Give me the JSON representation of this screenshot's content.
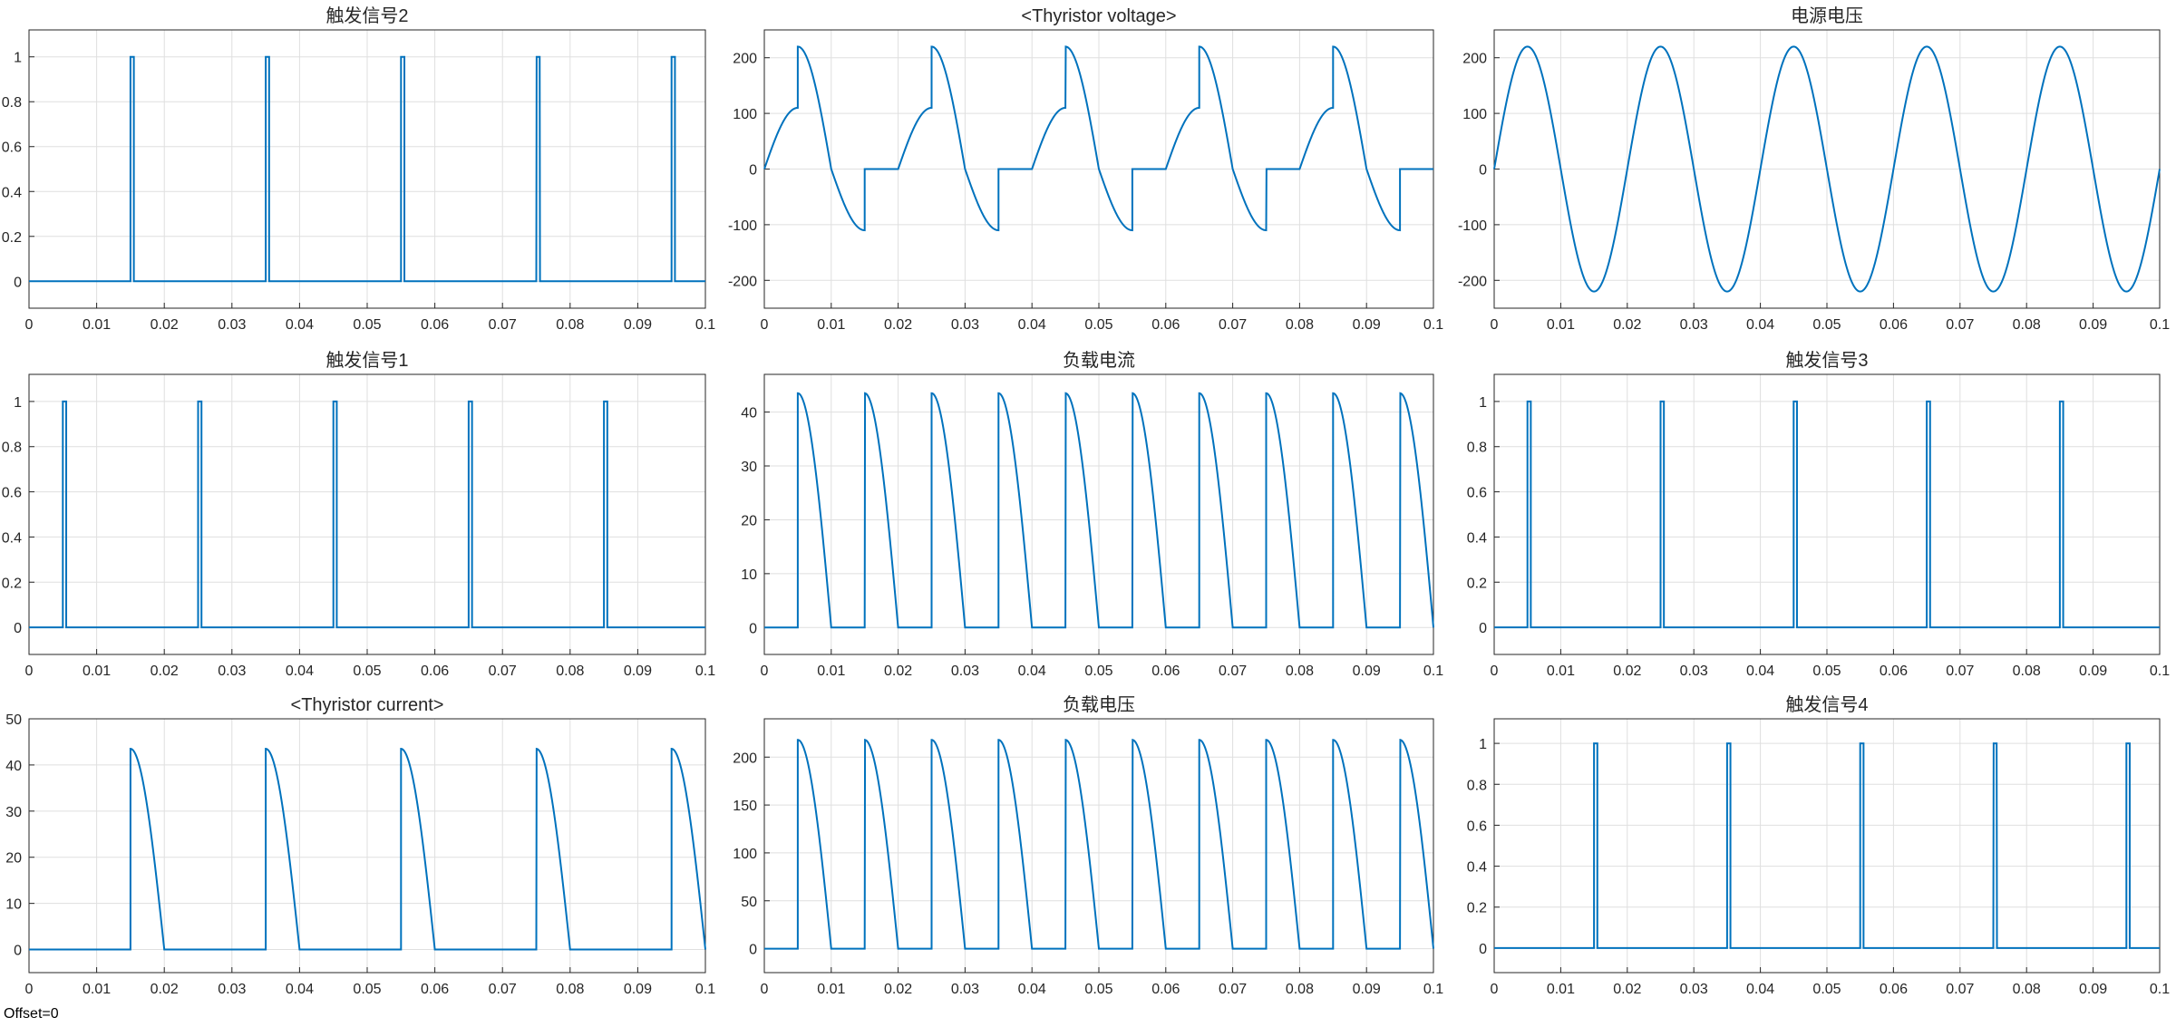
{
  "footer": {
    "offset_label": "Offset=0"
  },
  "colors": {
    "trace": "#0072BD",
    "grid": "#DFDFDF",
    "axis": "#262626",
    "background": "#FFFFFF"
  },
  "chart_data": [
    {
      "type": "line",
      "title": "触发信号2",
      "kind": "pulse",
      "period": 0.02,
      "phase": 0.015,
      "width": 0.0005,
      "amplitude": 1,
      "xlim": [
        0,
        0.1
      ],
      "ylim": [
        -0.12,
        1.12
      ],
      "xticks": [
        "0",
        "0.01",
        "0.02",
        "0.03",
        "0.04",
        "0.05",
        "0.06",
        "0.07",
        "0.08",
        "0.09",
        "0.1"
      ],
      "yticks": [
        0,
        0.2,
        0.4,
        0.6,
        0.8,
        1
      ],
      "ytick_labels": [
        "0",
        "0.2",
        "0.4",
        "0.6",
        "0.8",
        "1"
      ],
      "grid": true
    },
    {
      "type": "line",
      "title": "<Thyristor voltage>",
      "kind": "thyristor_voltage",
      "amplitude": 220,
      "xlim": [
        0,
        0.1
      ],
      "ylim": [
        -250,
        250
      ],
      "xticks": [
        "0",
        "0.01",
        "0.02",
        "0.03",
        "0.04",
        "0.05",
        "0.06",
        "0.07",
        "0.08",
        "0.09",
        "0.1"
      ],
      "yticks": [
        -200,
        -100,
        0,
        100,
        200
      ],
      "ytick_labels": [
        "-200",
        "-100",
        "0",
        "100",
        "200"
      ],
      "grid": true
    },
    {
      "type": "line",
      "title": "电源电压",
      "kind": "sine",
      "amplitude": 220,
      "frequency": 50,
      "xlim": [
        0,
        0.1
      ],
      "ylim": [
        -250,
        250
      ],
      "xticks": [
        "0",
        "0.01",
        "0.02",
        "0.03",
        "0.04",
        "0.05",
        "0.06",
        "0.07",
        "0.08",
        "0.09",
        "0.1"
      ],
      "yticks": [
        -200,
        -100,
        0,
        100,
        200
      ],
      "ytick_labels": [
        "-200",
        "-100",
        "0",
        "100",
        "200"
      ],
      "grid": true
    },
    {
      "type": "line",
      "title": "触发信号1",
      "kind": "pulse",
      "period": 0.02,
      "phase": 0.005,
      "width": 0.0005,
      "amplitude": 1,
      "xlim": [
        0,
        0.1
      ],
      "ylim": [
        -0.12,
        1.12
      ],
      "xticks": [
        "0",
        "0.01",
        "0.02",
        "0.03",
        "0.04",
        "0.05",
        "0.06",
        "0.07",
        "0.08",
        "0.09",
        "0.1"
      ],
      "yticks": [
        0,
        0.2,
        0.4,
        0.6,
        0.8,
        1
      ],
      "ytick_labels": [
        "0",
        "0.2",
        "0.4",
        "0.6",
        "0.8",
        "1"
      ],
      "grid": true
    },
    {
      "type": "line",
      "title": "负载电流",
      "kind": "load_rect",
      "amplitude": 43.5,
      "conduction_start": 0.005,
      "period": 0.01,
      "xlim": [
        0,
        0.1
      ],
      "ylim": [
        -5,
        47
      ],
      "xticks": [
        "0",
        "0.01",
        "0.02",
        "0.03",
        "0.04",
        "0.05",
        "0.06",
        "0.07",
        "0.08",
        "0.09",
        "0.1"
      ],
      "yticks": [
        0,
        10,
        20,
        30,
        40
      ],
      "ytick_labels": [
        "0",
        "10",
        "20",
        "30",
        "40"
      ],
      "grid": true
    },
    {
      "type": "line",
      "title": "触发信号3",
      "kind": "pulse",
      "period": 0.02,
      "phase": 0.005,
      "width": 0.0005,
      "amplitude": 1,
      "xlim": [
        0,
        0.1
      ],
      "ylim": [
        -0.12,
        1.12
      ],
      "xticks": [
        "0",
        "0.01",
        "0.02",
        "0.03",
        "0.04",
        "0.05",
        "0.06",
        "0.07",
        "0.08",
        "0.09",
        "0.1"
      ],
      "yticks": [
        0,
        0.2,
        0.4,
        0.6,
        0.8,
        1
      ],
      "ytick_labels": [
        "0",
        "0.2",
        "0.4",
        "0.6",
        "0.8",
        "1"
      ],
      "grid": true
    },
    {
      "type": "line",
      "title": "<Thyristor current>",
      "kind": "thyristor_current",
      "amplitude": 43.5,
      "conduction_start": 0.015,
      "period": 0.02,
      "xlim": [
        0,
        0.1
      ],
      "ylim": [
        -5,
        50
      ],
      "xticks": [
        "0",
        "0.01",
        "0.02",
        "0.03",
        "0.04",
        "0.05",
        "0.06",
        "0.07",
        "0.08",
        "0.09",
        "0.1"
      ],
      "yticks": [
        0,
        10,
        20,
        30,
        40,
        50
      ],
      "ytick_labels": [
        "0",
        "10",
        "20",
        "30",
        "40",
        "50"
      ],
      "grid": true
    },
    {
      "type": "line",
      "title": "负载电压",
      "kind": "load_rect",
      "amplitude": 218,
      "conduction_start": 0.005,
      "period": 0.01,
      "xlim": [
        0,
        0.1
      ],
      "ylim": [
        -25,
        240
      ],
      "xticks": [
        "0",
        "0.01",
        "0.02",
        "0.03",
        "0.04",
        "0.05",
        "0.06",
        "0.07",
        "0.08",
        "0.09",
        "0.1"
      ],
      "yticks": [
        0,
        50,
        100,
        150,
        200
      ],
      "ytick_labels": [
        "0",
        "50",
        "100",
        "150",
        "200"
      ],
      "grid": true
    },
    {
      "type": "line",
      "title": "触发信号4",
      "kind": "pulse",
      "period": 0.02,
      "phase": 0.015,
      "width": 0.0005,
      "amplitude": 1,
      "xlim": [
        0,
        0.1
      ],
      "ylim": [
        -0.12,
        1.12
      ],
      "xticks": [
        "0",
        "0.01",
        "0.02",
        "0.03",
        "0.04",
        "0.05",
        "0.06",
        "0.07",
        "0.08",
        "0.09",
        "0.1"
      ],
      "yticks": [
        0,
        0.2,
        0.4,
        0.6,
        0.8,
        1
      ],
      "ytick_labels": [
        "0",
        "0.2",
        "0.4",
        "0.6",
        "0.8",
        "1"
      ],
      "grid": true
    }
  ]
}
